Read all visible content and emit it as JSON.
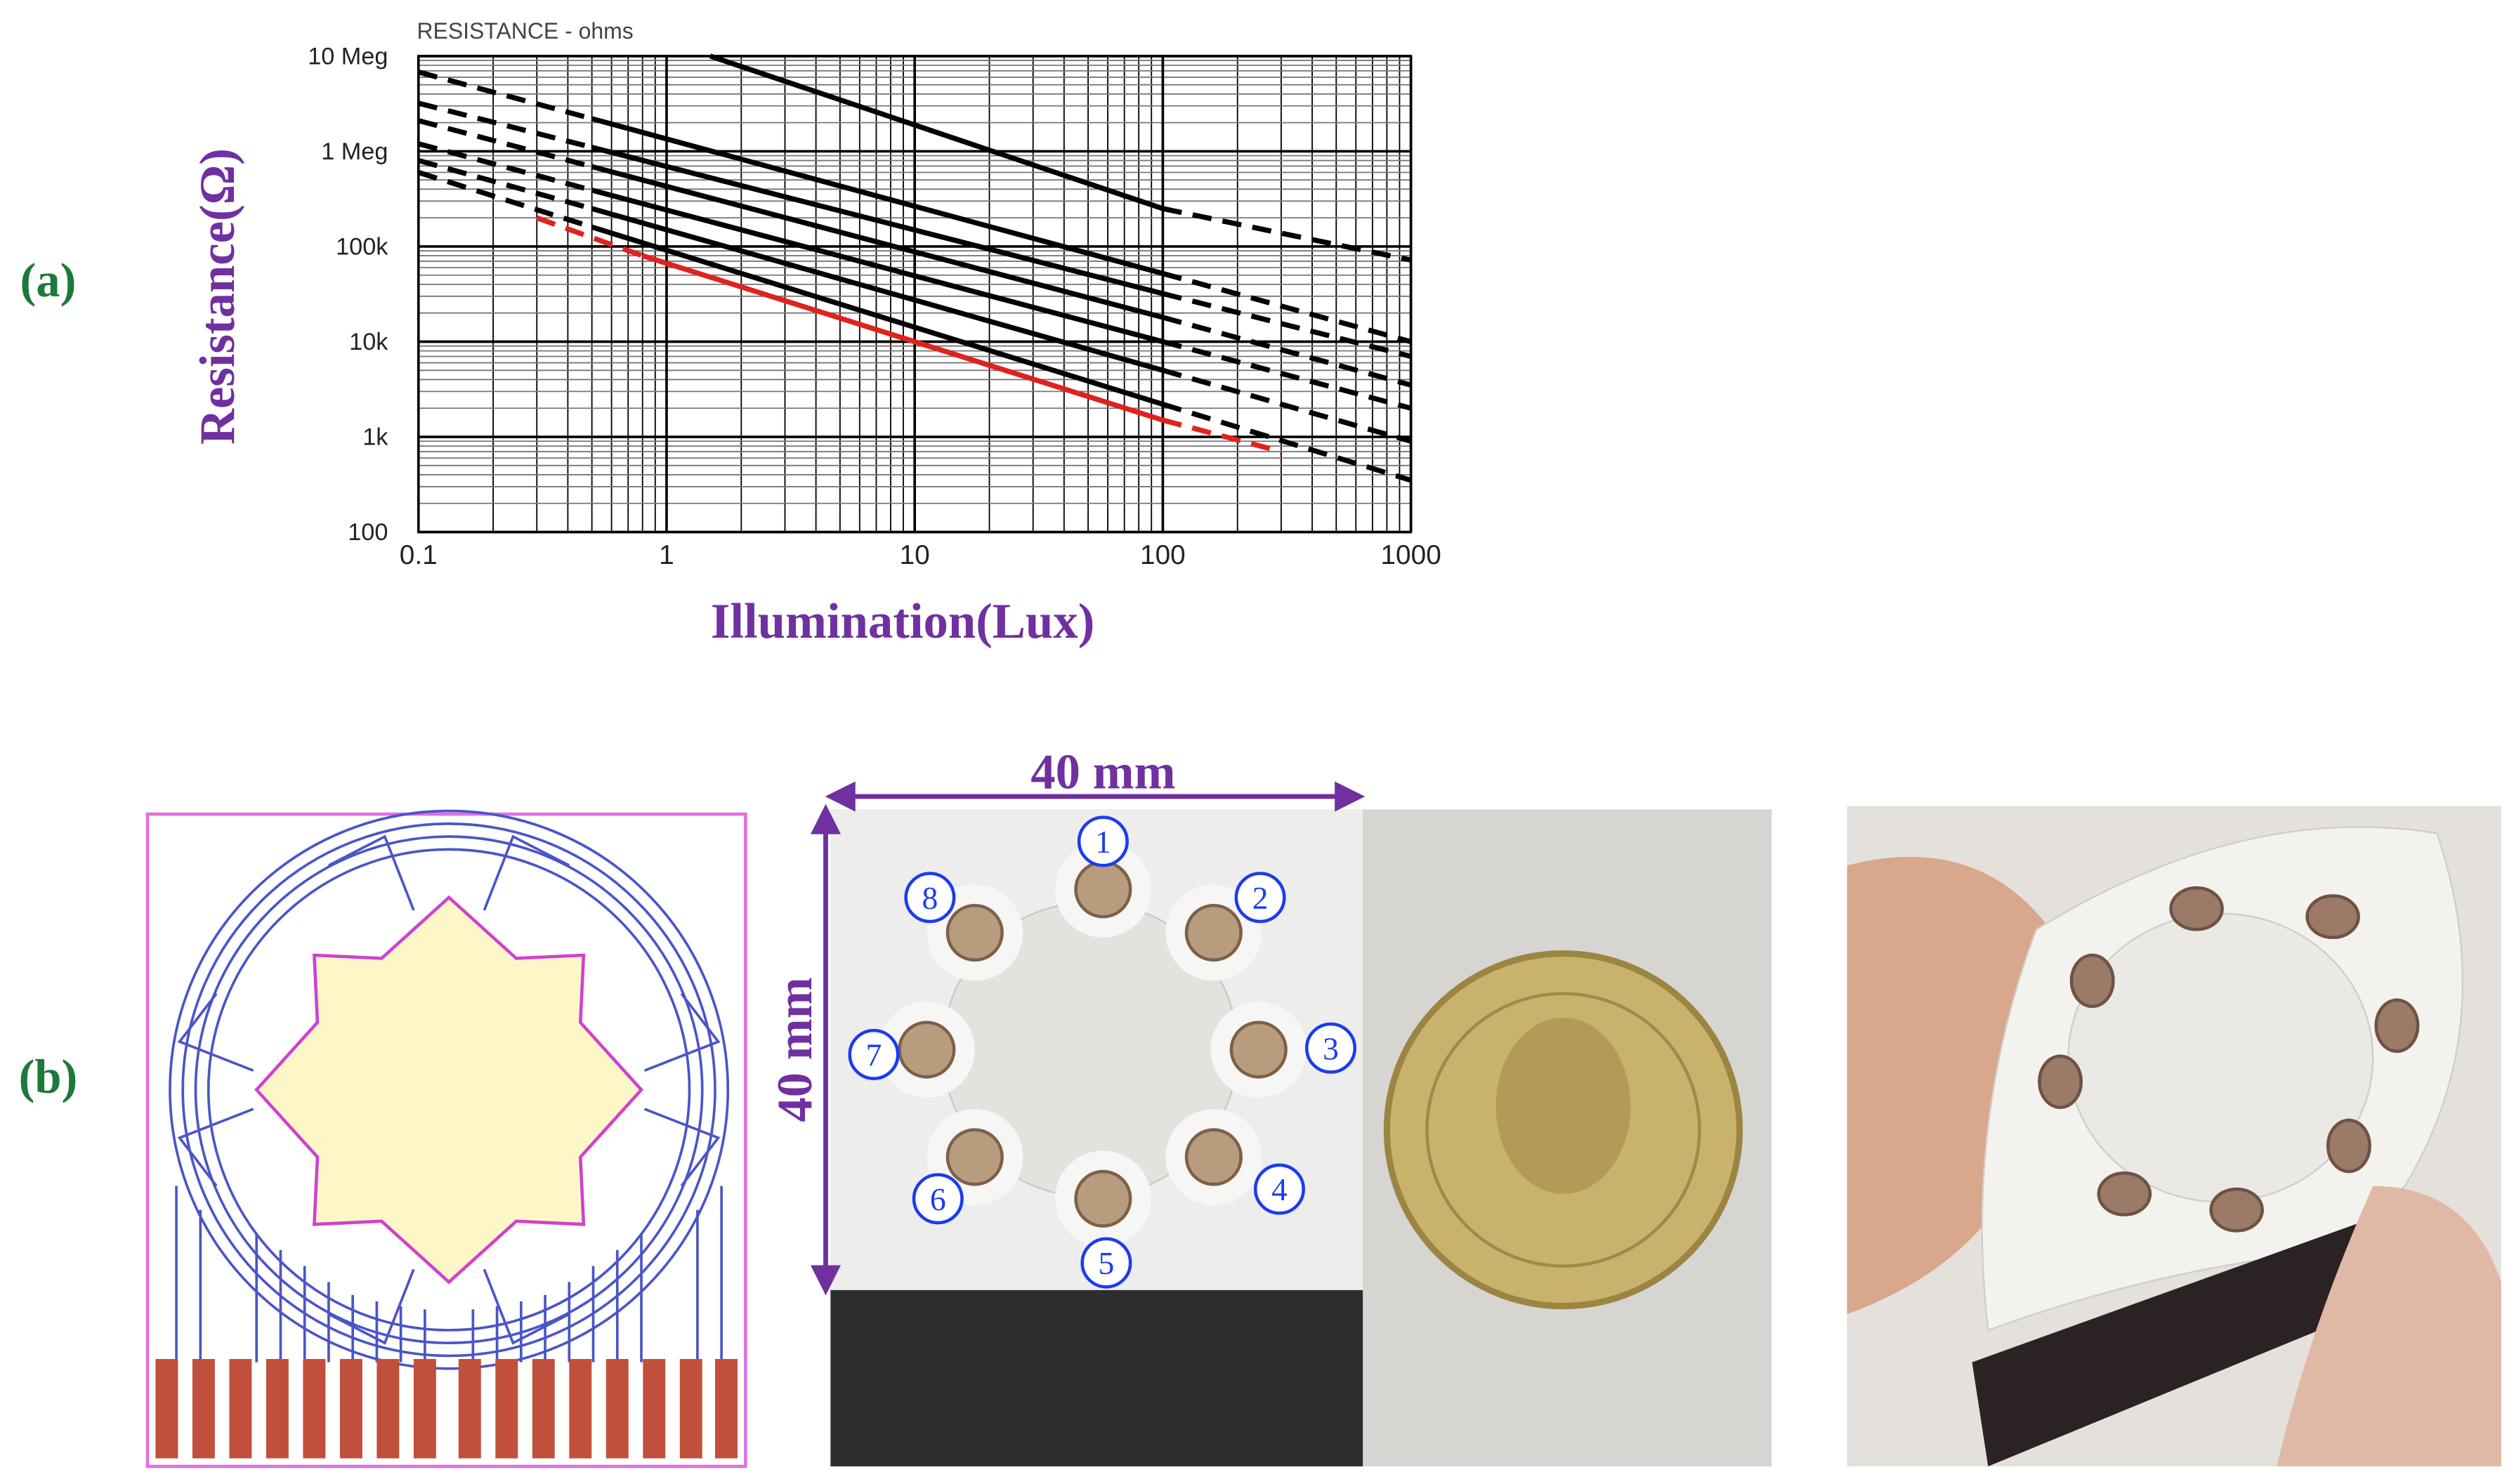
{
  "panel_labels": [
    "(a)",
    "(b)"
  ],
  "chart_data": {
    "type": "line",
    "annotation": "RESISTANCE - ohms",
    "x_label": "Illumination(Lux)",
    "y_label": "Resistance(Ω)",
    "x_log": true,
    "y_log": true,
    "grid": true,
    "xlim": [
      0.1,
      1000
    ],
    "ylim": [
      100,
      10000000
    ],
    "xticks": [
      0.1,
      1,
      10,
      100,
      1000
    ],
    "yticks": [
      100,
      {
        "value": 1000,
        "label": "1k"
      },
      {
        "value": 10000,
        "label": "10k"
      },
      {
        "value": 100000,
        "label": "100k"
      },
      {
        "value": 1000000,
        "label": "1 Meg"
      },
      {
        "value": 10000000,
        "label": "10 Meg"
      }
    ],
    "series": [
      {
        "color": "#000000",
        "x": [
          1.5,
          100,
          1000
        ],
        "values": [
          10000000,
          250000,
          72000
        ],
        "dashed_segments": [
          false,
          true
        ]
      },
      {
        "color": "#000000",
        "x": [
          0.1,
          0.5,
          100,
          1000
        ],
        "values": [
          6800000,
          2200000,
          52000,
          10000
        ],
        "dashed_segments": [
          true,
          false,
          true
        ]
      },
      {
        "color": "#000000",
        "x": [
          0.1,
          0.5,
          100,
          1000
        ],
        "values": [
          3200000,
          1100000,
          32000,
          7000
        ],
        "dashed_segments": [
          true,
          false,
          true
        ]
      },
      {
        "color": "#000000",
        "x": [
          0.1,
          0.5,
          100,
          1000
        ],
        "values": [
          2100000,
          690000,
          18000,
          3500
        ],
        "dashed_segments": [
          true,
          false,
          true
        ]
      },
      {
        "color": "#000000",
        "x": [
          0.1,
          0.5,
          100,
          1000
        ],
        "values": [
          1200000,
          390000,
          10000,
          2000
        ],
        "dashed_segments": [
          true,
          false,
          true
        ]
      },
      {
        "color": "#000000",
        "x": [
          0.1,
          0.5,
          100,
          1000
        ],
        "values": [
          800000,
          250000,
          5000,
          900
        ],
        "dashed_segments": [
          true,
          false,
          true
        ]
      },
      {
        "color": "#000000",
        "x": [
          0.1,
          0.5,
          100,
          1000
        ],
        "values": [
          600000,
          160000,
          2200,
          350
        ],
        "dashed_segments": [
          true,
          false,
          true
        ]
      },
      {
        "color": "#e0221c",
        "x": [
          0.3,
          0.8,
          100,
          300
        ],
        "values": [
          200000,
          80000,
          1500,
          700
        ],
        "dashed_segments": [
          true,
          false,
          true
        ]
      }
    ]
  },
  "panel_b": {
    "width_label": "40 mm",
    "height_label": "40 mm",
    "sensor_labels": [
      "1",
      "2",
      "3",
      "4",
      "5",
      "6",
      "7",
      "8"
    ]
  }
}
